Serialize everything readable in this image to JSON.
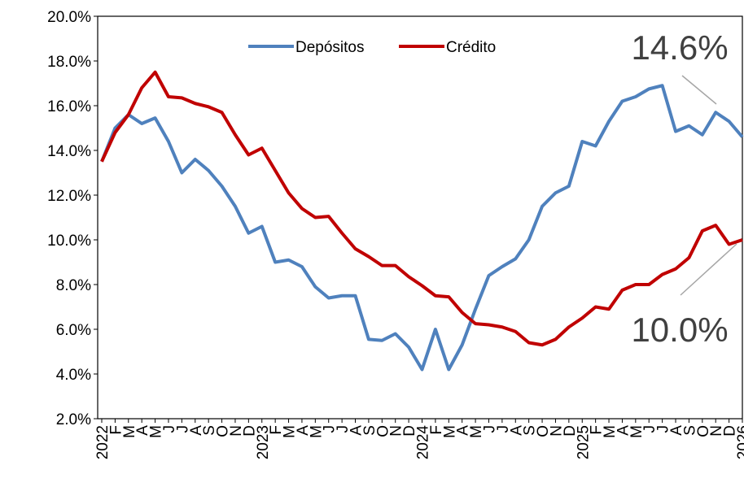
{
  "chart_data": {
    "type": "line",
    "categories": [
      "2022",
      "F",
      "M",
      "A",
      "M",
      "J",
      "J",
      "A",
      "S",
      "O",
      "N",
      "D",
      "2023",
      "F",
      "M",
      "A",
      "M",
      "J",
      "J",
      "A",
      "S",
      "O",
      "N",
      "D",
      "2024",
      "F",
      "M",
      "A",
      "M",
      "J",
      "J",
      "A",
      "S",
      "O",
      "N",
      "D",
      "2025",
      "F",
      "M",
      "A",
      "M",
      "J",
      "J",
      "A",
      "S",
      "O",
      "N",
      "D",
      "2026"
    ],
    "series": [
      {
        "name": "Depósitos",
        "color": "#4f81bd",
        "values": [
          13.5,
          15.0,
          15.6,
          15.2,
          15.45,
          14.4,
          13.0,
          13.6,
          13.1,
          12.4,
          11.5,
          10.3,
          10.6,
          9.0,
          9.1,
          8.8,
          7.9,
          7.4,
          7.5,
          7.5,
          5.55,
          5.5,
          5.8,
          5.2,
          4.2,
          6.0,
          4.2,
          5.3,
          6.9,
          8.4,
          8.8,
          9.15,
          10.0,
          11.5,
          12.1,
          12.4,
          14.4,
          14.2,
          15.3,
          16.2,
          16.4,
          16.75,
          16.9,
          14.85,
          15.1,
          14.7,
          15.7,
          15.3,
          14.6
        ]
      },
      {
        "name": "Crédito",
        "color": "#c00000",
        "values": [
          13.5,
          14.8,
          15.6,
          16.8,
          17.5,
          16.4,
          16.35,
          16.1,
          15.95,
          15.7,
          14.7,
          13.8,
          14.1,
          13.1,
          12.1,
          11.4,
          11.0,
          11.05,
          10.3,
          9.6,
          9.25,
          8.85,
          8.85,
          8.35,
          7.95,
          7.5,
          7.45,
          6.75,
          6.25,
          6.2,
          6.1,
          5.9,
          5.4,
          5.3,
          5.55,
          6.1,
          6.5,
          7.0,
          6.9,
          7.75,
          8.0,
          8.0,
          8.45,
          8.7,
          9.2,
          10.4,
          10.65,
          9.8,
          10.0
        ]
      }
    ],
    "ylim": [
      2,
      20
    ],
    "yticks": [
      {
        "value": 2,
        "label": "2.0%"
      },
      {
        "value": 4,
        "label": "4.0%"
      },
      {
        "value": 6,
        "label": "6.0%"
      },
      {
        "value": 8,
        "label": "8.0%"
      },
      {
        "value": 10,
        "label": "10.0%"
      },
      {
        "value": 12,
        "label": "12.0%"
      },
      {
        "value": 14,
        "label": "14.0%"
      },
      {
        "value": 16,
        "label": "16.0%"
      },
      {
        "value": 18,
        "label": "18.0%"
      },
      {
        "value": 20,
        "label": "20.0%"
      }
    ],
    "annotations": [
      "14.6%",
      "10.0%"
    ],
    "legend": "top",
    "grid": false
  }
}
